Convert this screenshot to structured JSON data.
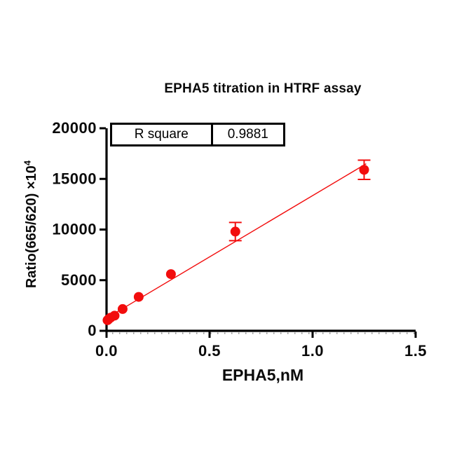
{
  "title": "EPHA5 titration in HTRF assay",
  "stats_box": {
    "label": "R square",
    "value": "0.9881"
  },
  "chart_data": {
    "type": "scatter",
    "title": "EPHA5 titration in HTRF assay",
    "xlabel": "EPHA5,nM",
    "ylabel": "Ratio(665/620) ×10^4",
    "ylabel_base": "Ratio(665/620) ×10",
    "ylabel_exponent": "4",
    "xlim": [
      0,
      1.5
    ],
    "ylim": [
      0,
      20000
    ],
    "grid": false,
    "legend": "none",
    "axis_color": "#000000",
    "marker_color": "#f20d0d",
    "line_color": "#f20d0d",
    "x_ticks": [
      {
        "v": 0.0,
        "label": "0.0"
      },
      {
        "v": 0.5,
        "label": "0.5"
      },
      {
        "v": 1.0,
        "label": "1.0"
      },
      {
        "v": 1.5,
        "label": "1.5"
      }
    ],
    "y_ticks": [
      {
        "v": 0,
        "label": "0"
      },
      {
        "v": 5000,
        "label": "5000"
      },
      {
        "v": 10000,
        "label": "10000"
      },
      {
        "v": 15000,
        "label": "15000"
      },
      {
        "v": 20000,
        "label": "20000"
      }
    ],
    "points": [
      {
        "x": 0.0049,
        "y": 1050,
        "err": 0
      },
      {
        "x": 0.0098,
        "y": 1150,
        "err": 0
      },
      {
        "x": 0.0195,
        "y": 1300,
        "err": 0
      },
      {
        "x": 0.039,
        "y": 1500,
        "err": 0
      },
      {
        "x": 0.078,
        "y": 2150,
        "err": 0
      },
      {
        "x": 0.156,
        "y": 3350,
        "err": 0
      },
      {
        "x": 0.3125,
        "y": 5600,
        "err": 0
      },
      {
        "x": 0.625,
        "y": 9800,
        "err": 900
      },
      {
        "x": 1.25,
        "y": 15900,
        "err": 950
      }
    ],
    "fit_line": {
      "slope": 12100,
      "intercept": 1250,
      "x_start": 0.0,
      "x_end": 1.26,
      "r_square": 0.9881
    }
  }
}
